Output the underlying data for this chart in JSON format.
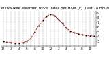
{
  "title": "Milwaukee Weather THSW Index per Hour (F) (Last 24 Hours)",
  "hours": [
    0,
    1,
    2,
    3,
    4,
    5,
    6,
    7,
    8,
    9,
    10,
    11,
    12,
    13,
    14,
    15,
    16,
    17,
    18,
    19,
    20,
    21,
    22,
    23
  ],
  "values": [
    30,
    28,
    27,
    26,
    26,
    27,
    30,
    36,
    50,
    63,
    74,
    83,
    88,
    85,
    76,
    68,
    58,
    52,
    48,
    46,
    44,
    43,
    42,
    41
  ],
  "line_color": "#cc0000",
  "marker_color": "#000000",
  "grid_color": "#999999",
  "bg_color": "#ffffff",
  "text_color": "#000000",
  "ylim": [
    20,
    95
  ],
  "ytick_vals": [
    30,
    40,
    50,
    60,
    70,
    80,
    90
  ],
  "ytick_labels": [
    "3",
    "4",
    "5",
    "6",
    "7",
    "8",
    "9"
  ],
  "title_fontsize": 3.8,
  "tick_fontsize": 3.2,
  "ytick_fontsize": 3.8,
  "figwidth": 1.6,
  "figheight": 0.87,
  "dpi": 100
}
